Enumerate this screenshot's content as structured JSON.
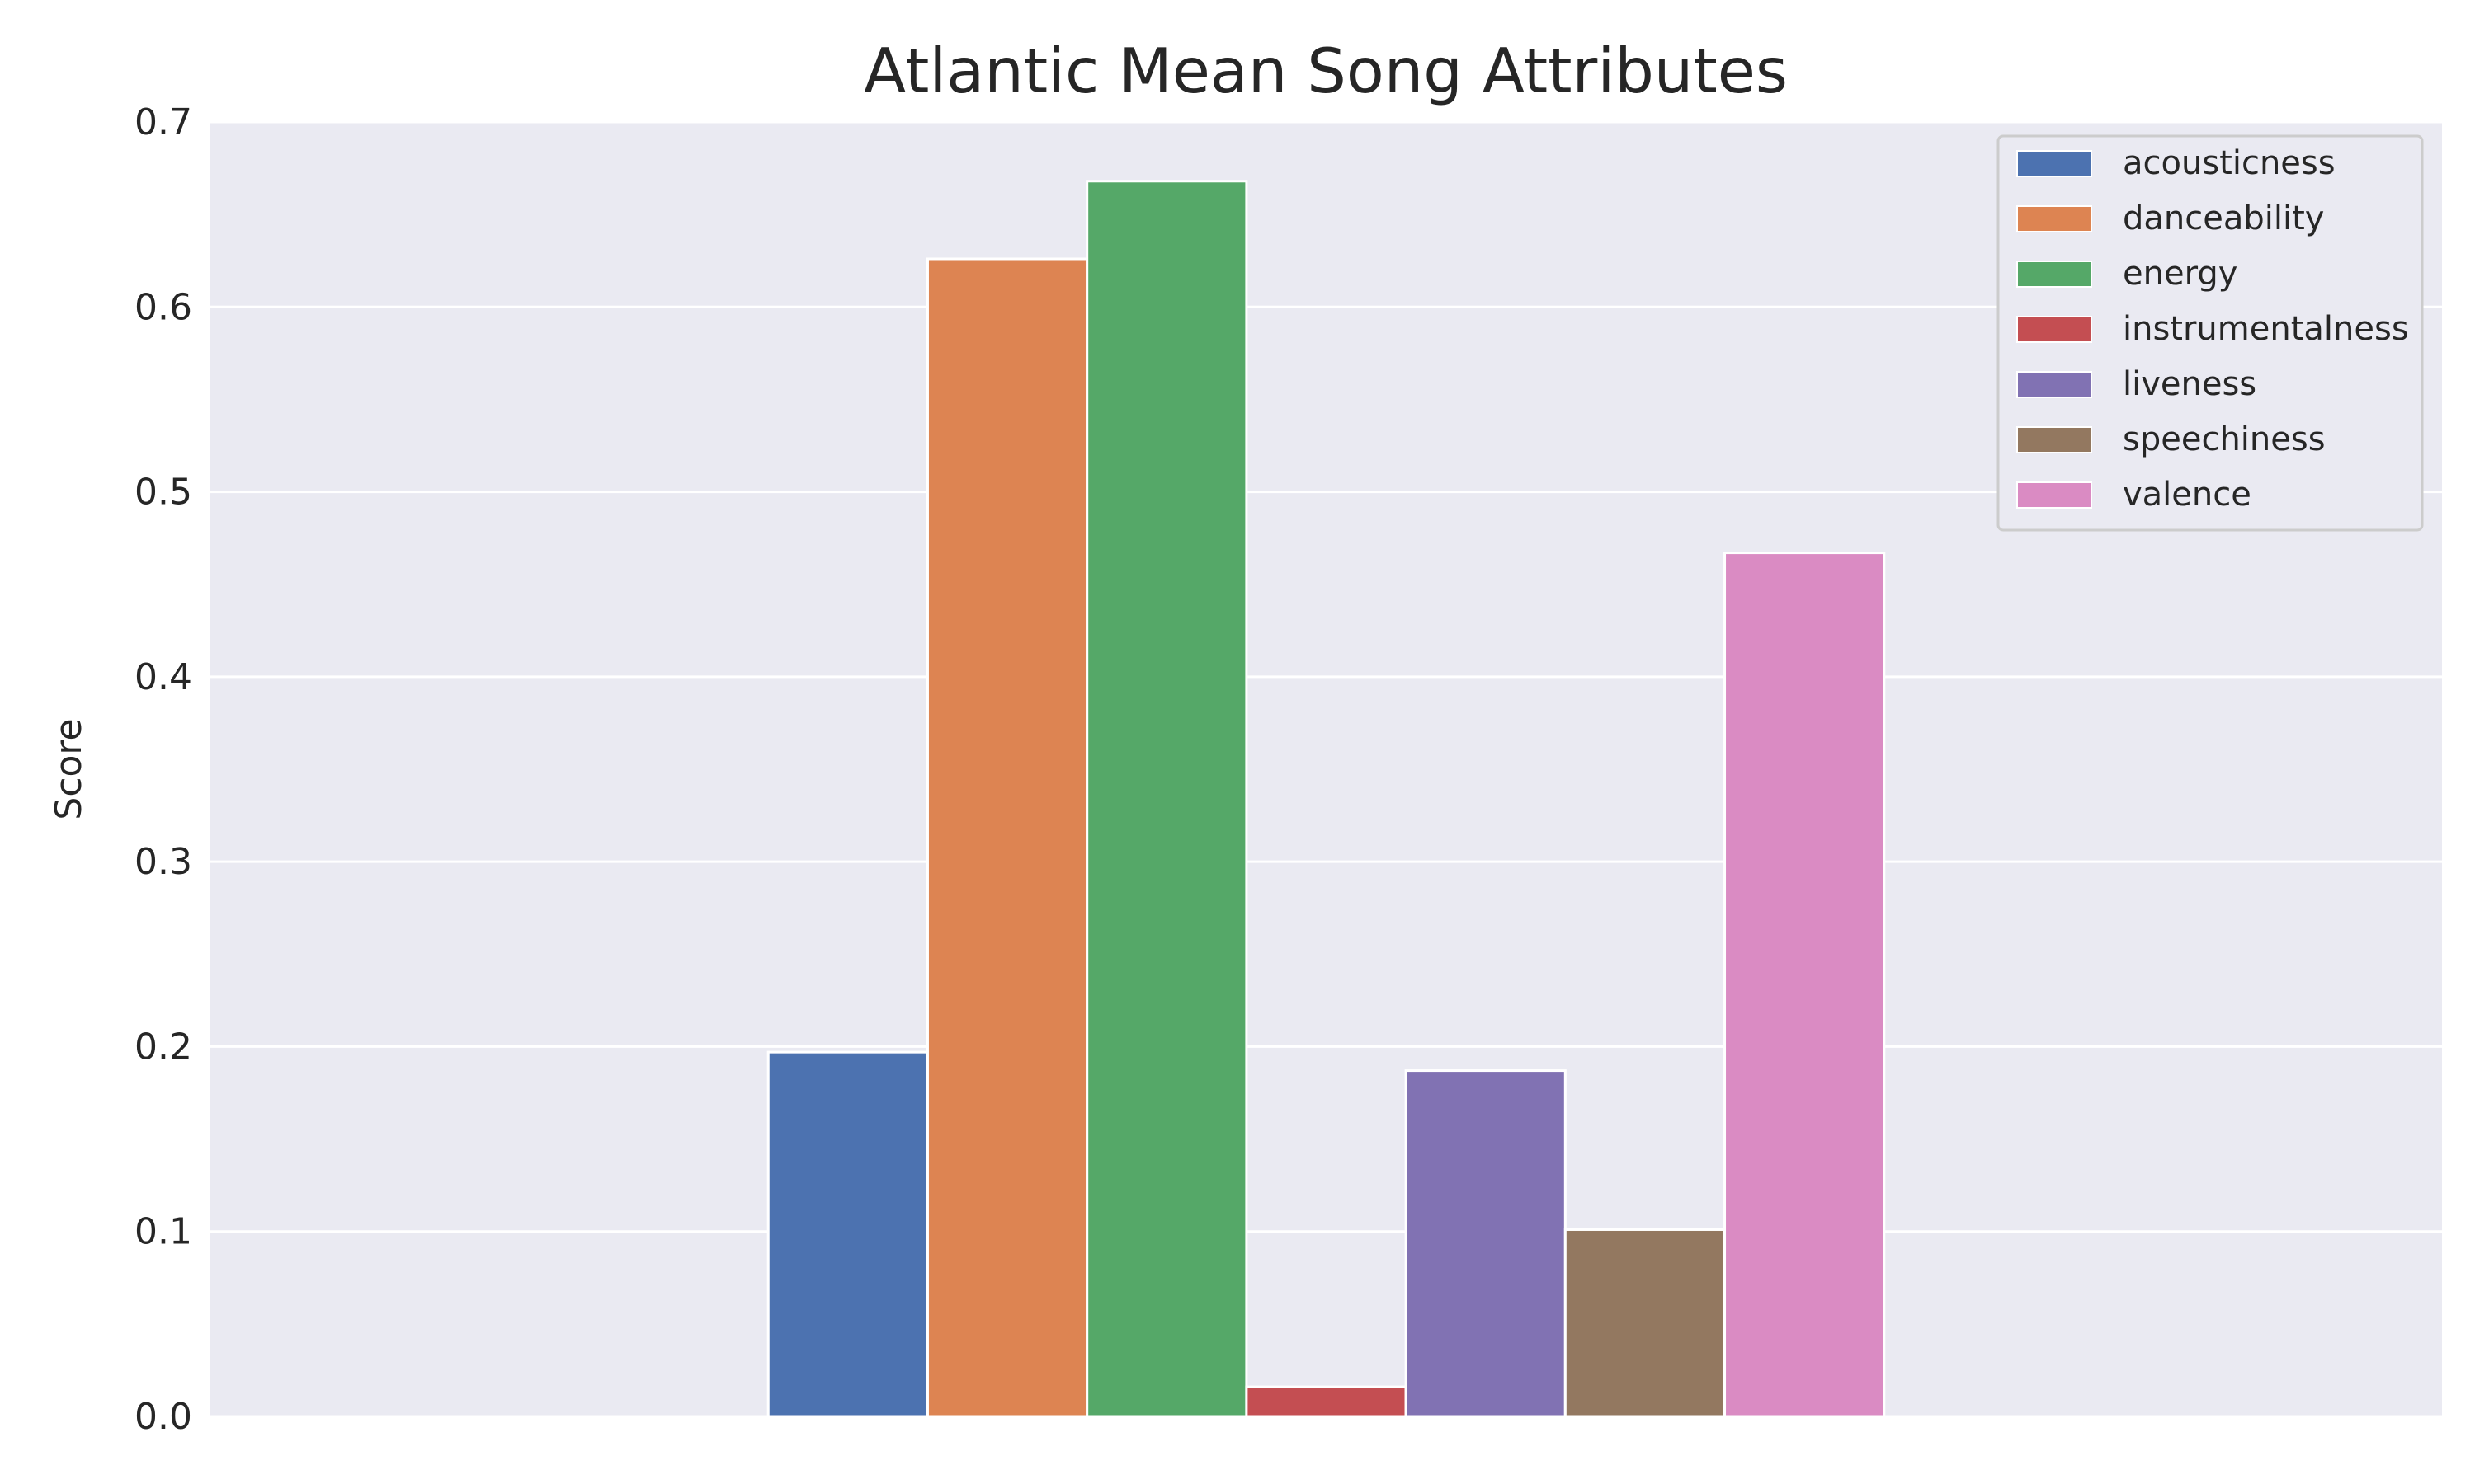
{
  "chart_data": {
    "type": "bar",
    "title": "Atlantic Mean Song Attributes",
    "xlabel": "",
    "ylabel": "Score",
    "ylim": [
      0,
      0.7
    ],
    "yticks": [
      "0.0",
      "0.1",
      "0.2",
      "0.3",
      "0.4",
      "0.5",
      "0.6",
      "0.7"
    ],
    "categories": [
      ""
    ],
    "grid": true,
    "legend_position": "top-right",
    "series": [
      {
        "name": "acousticness",
        "values": [
          0.197
        ],
        "color": "#4c72b0"
      },
      {
        "name": "danceability",
        "values": [
          0.626
        ],
        "color": "#dd8452"
      },
      {
        "name": "energy",
        "values": [
          0.668
        ],
        "color": "#55a868"
      },
      {
        "name": "instrumentalness",
        "values": [
          0.016
        ],
        "color": "#c44e52"
      },
      {
        "name": "liveness",
        "values": [
          0.187
        ],
        "color": "#8172b3"
      },
      {
        "name": "speechiness",
        "values": [
          0.101
        ],
        "color": "#937860"
      },
      {
        "name": "valence",
        "values": [
          0.467
        ],
        "color": "#da8bc3"
      }
    ],
    "background_color": "#eaeaf2",
    "grid_color": "#ffffff"
  }
}
